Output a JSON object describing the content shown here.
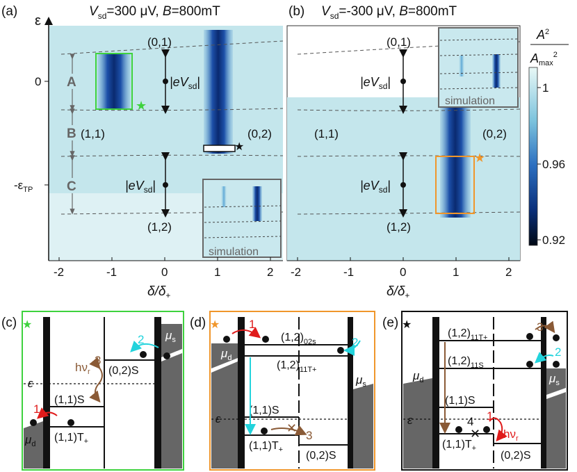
{
  "panel_a": {
    "label": "(a)",
    "title_prefix": "V",
    "title_sub": "sd",
    "title_rest": "=300 μV, ",
    "title_b": "B",
    "title_end": "=800mT",
    "eps_axis": "ε",
    "tick_zero": "0",
    "tick_tp": "-ε",
    "tick_tp_sub": "TP",
    "regions": [
      "A",
      "B",
      "C"
    ],
    "states": {
      "s01": "(0,1)",
      "s11": "(1,1)",
      "s02": "(0,2)",
      "s12": "(1,2)"
    },
    "evsd": "|eV",
    "evsd_sub": "sd",
    "evsd_end": "|",
    "inset": "simulation"
  },
  "panel_b": {
    "label": "(b)",
    "title_prefix": "V",
    "title_sub": "sd",
    "title_rest": "=-300 μV, ",
    "title_b": "B",
    "title_end": "=800mT",
    "states": {
      "s01": "(0,1)",
      "s11": "(1,1)",
      "s02": "(0,2)",
      "s12": "(1,2)"
    },
    "evsd": "|eV",
    "evsd_sub": "sd",
    "evsd_end": "|",
    "inset": "simulation"
  },
  "x_axis": {
    "ticks": [
      "-2",
      "-1",
      "0",
      "1",
      "2"
    ],
    "label": "δ/δ",
    "label_sub": "+"
  },
  "colorbar": {
    "label_num": "A",
    "label_num_sup": "2",
    "label_den": "A",
    "label_den_sub": "max",
    "label_den_sup": "2",
    "ticks": [
      "1",
      "0.96",
      "0.92"
    ],
    "values": [
      1,
      0.96,
      0.92
    ]
  },
  "panel_c": {
    "label": "(c)",
    "mu_d": "μ",
    "mu_d_sub": "d",
    "mu_s": "μ",
    "mu_s_sub": "s",
    "eps": "ε",
    "hv": "hν",
    "hv_sub": "r",
    "n1": "1",
    "n2": "2",
    "n3": "3",
    "s02S": "(0,2)S",
    "s11S": "(1,1)S",
    "s11T": "(1,1)T",
    "s11T_sub": "+"
  },
  "panel_d": {
    "label": "(d)",
    "mu_d": "μ",
    "mu_d_sub": "d",
    "mu_s": "μ",
    "mu_s_sub": "s",
    "eps": "ε",
    "n1": "1",
    "n2": "2",
    "n3": "3",
    "s12": "(1,2)",
    "s12_sub1": "02s",
    "s12_sub2": "11T+",
    "s11S": "(1,1)S",
    "s11T": "(1,1)T",
    "s11T_sub": "+",
    "s02S": "(0,2)S"
  },
  "panel_e": {
    "label": "(e)",
    "mu_d": "μ",
    "mu_d_sub": "d",
    "mu_s": "μ",
    "mu_s_sub": "s",
    "eps": "ε",
    "hv": "hν",
    "hv_sub": "r",
    "n1": "1",
    "n2": "2",
    "n3": "3",
    "n4": "4",
    "s12": "(1,2)",
    "s12_sub1": "11T+",
    "s12_sub2": "11S",
    "s11S": "(1,1)S",
    "s11T": "(1,1)T",
    "s11T_sub": "+",
    "s02S": "(0,2)S"
  },
  "colors": {
    "green": "#3ed23e",
    "orange": "#f0962b",
    "cyan": "#22d3dc",
    "brown": "#8a5a36",
    "red": "#e01b1b",
    "map_bg": "#bfe4ea",
    "map_dark": "#0a2a66"
  }
}
